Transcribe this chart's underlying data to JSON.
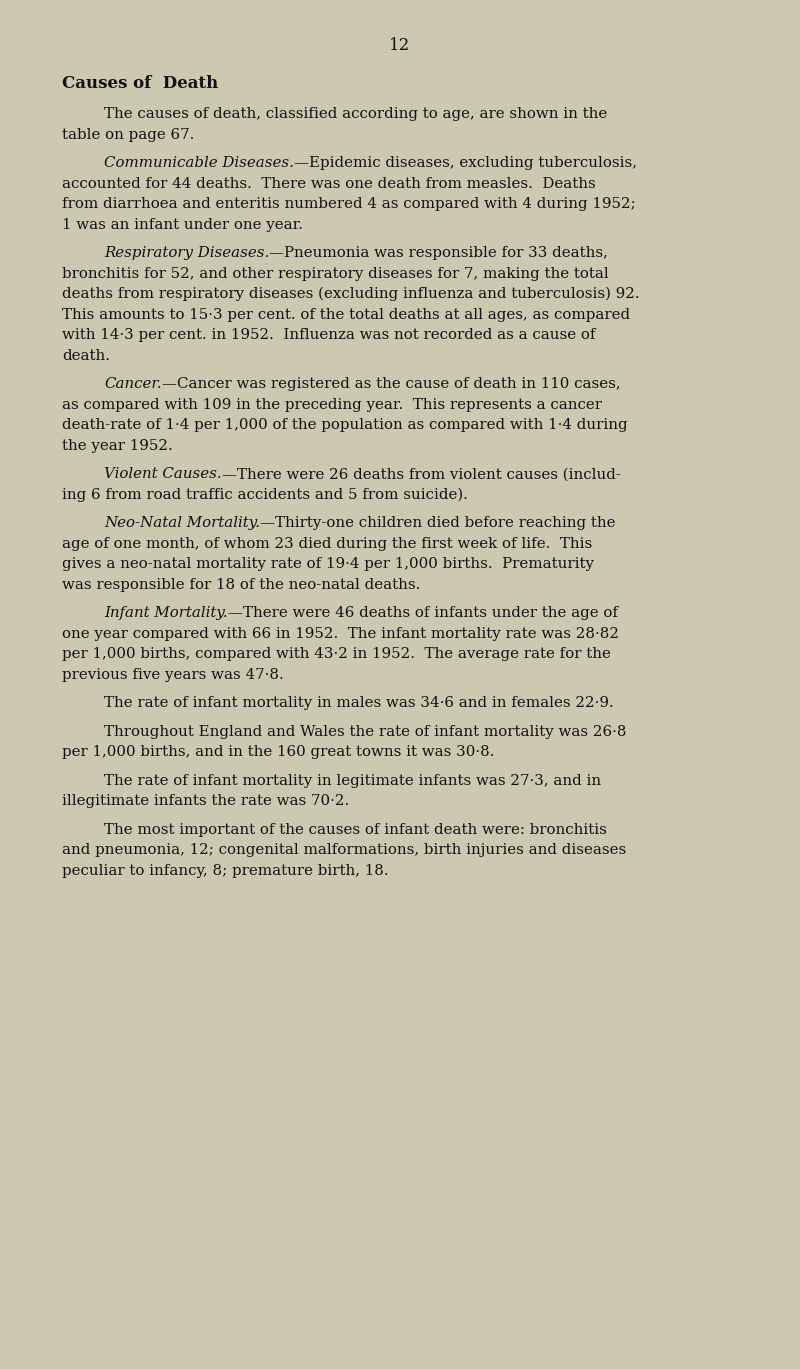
{
  "page_number": "12",
  "background_color": "#cdc9b0",
  "text_color": "#111111",
  "title": "Causes of  Death",
  "page_num_fontsize": 12,
  "title_fontsize": 12,
  "body_fontsize": 10.8,
  "paragraphs": [
    {
      "italic_prefix": null,
      "text": "The causes of death, classified according to age, are shown in the\ntable on page 67."
    },
    {
      "italic_prefix": "Communicable Diseases.",
      "text": "—Epidemic diseases, excluding tuberculosis,\naccounted for 44 deaths.  There was one death from measles.  Deaths\nfrom diarrhoea and enteritis numbered 4 as compared with 4 during 1952;\n1 was an infant under one year."
    },
    {
      "italic_prefix": "Respiratory Diseases.",
      "text": "—Pneumonia was responsible for 33 deaths,\nbronchitis for 52, and other respiratory diseases for 7, making the total\ndeaths from respiratory diseases (excluding influenza and tuberculosis) 92.\nThis amounts to 15·3 per cent. of the total deaths at all ages, as compared\nwith 14·3 per cent. in 1952.  Influenza was not recorded as a cause of\ndeath."
    },
    {
      "italic_prefix": "Cancer.",
      "text": "—Cancer was registered as the cause of death in 110 cases,\nas compared with 109 in the preceding year.  This represents a cancer\ndeath-rate of 1·4 per 1,000 of the population as compared with 1·4 during\nthe year 1952."
    },
    {
      "italic_prefix": "Violent Causes.",
      "text": "—There were 26 deaths from violent causes (includ-\ning 6 from road traffic accidents and 5 from suicide)."
    },
    {
      "italic_prefix": "Neo-Natal Mortality.",
      "text": "—Thirty-one children died before reaching the\nage of one month, of whom 23 died during the first week of life.  This\ngives a neo-natal mortality rate of 19·4 per 1,000 births.  Prematurity\nwas responsible for 18 of the neo-natal deaths."
    },
    {
      "italic_prefix": "Infant Mortality.",
      "text": "—There were 46 deaths of infants under the age of\none year compared with 66 in 1952.  The infant mortality rate was 28·82\nper 1,000 births, compared with 43·2 in 1952.  The average rate for the\nprevious five years was 47·8."
    },
    {
      "italic_prefix": null,
      "text": "The rate of infant mortality in males was 34·6 and in females 22·9."
    },
    {
      "italic_prefix": null,
      "text": "Throughout England and Wales the rate of infant mortality was 26·8\nper 1,000 births, and in the 160 great towns it was 30·8."
    },
    {
      "italic_prefix": null,
      "text": "The rate of infant mortality in legitimate infants was 27·3, and in\nillegitimate infants the rate was 70·2."
    },
    {
      "italic_prefix": null,
      "text": "The most important of the causes of infant death were: bronchitis\nand pneumonia, 12; congenital malformations, birth injuries and diseases\npeculiar to infancy, 8; premature birth, 18."
    }
  ]
}
